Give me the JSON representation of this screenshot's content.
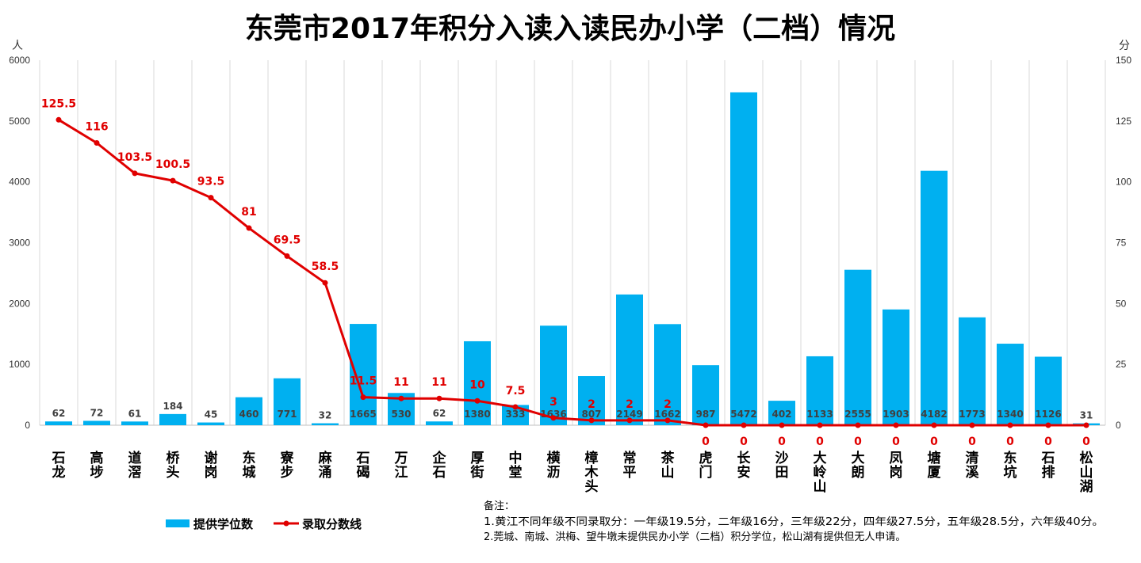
{
  "chart_data": {
    "type": "bar",
    "title": "东莞市2017年积分入读入读民办小学（二档）情况",
    "y_left_unit": "人",
    "y_right_unit": "分",
    "y_left_ticks": [
      "0",
      "1000",
      "2000",
      "3000",
      "4000",
      "5000",
      "6000"
    ],
    "y_right_ticks": [
      "0",
      "25",
      "50",
      "75",
      "100",
      "125",
      "150"
    ],
    "ylim_left": [
      0,
      6000
    ],
    "ylim_right": [
      0,
      150
    ],
    "grid": "vertical",
    "categories": [
      "石龙",
      "高埗",
      "道滘",
      "桥头",
      "谢岗",
      "东城",
      "寮步",
      "麻涌",
      "石碣",
      "万江",
      "企石",
      "厚街",
      "中堂",
      "横沥",
      "樟木头",
      "常平",
      "茶山",
      "虎门",
      "长安",
      "沙田",
      "大岭山",
      "大朗",
      "凤岗",
      "塘厦",
      "清溪",
      "东坑",
      "石排",
      "松山湖"
    ],
    "bar_value_labels": [
      "62",
      "72",
      "61",
      "184",
      "45",
      "460",
      "771",
      "32",
      "1665",
      "530",
      "62",
      "1380",
      "333",
      "1636",
      "807",
      "2149",
      "1662",
      "987",
      "5472",
      "402",
      "1133",
      "2555",
      "1903",
      "4182",
      "1773",
      "1340",
      "1126",
      "31"
    ],
    "line_value_labels": [
      "125.5",
      "116",
      "103.5",
      "100.5",
      "93.5",
      "81",
      "69.5",
      "58.5",
      "11.5",
      "11",
      "11",
      "10",
      "7.5",
      "3",
      "2",
      "2",
      "2",
      "0",
      "0",
      "0",
      "0",
      "0",
      "0",
      "0",
      "0",
      "0",
      "0",
      "0"
    ],
    "series": [
      {
        "name": "提供学位数",
        "type": "bar",
        "axis": "left",
        "color": "#00b0f0",
        "values": [
          62,
          72,
          61,
          184,
          45,
          460,
          771,
          32,
          1665,
          530,
          62,
          1380,
          333,
          1636,
          807,
          2149,
          1662,
          987,
          5472,
          402,
          1133,
          2555,
          1903,
          4182,
          1773,
          1340,
          1126,
          31
        ]
      },
      {
        "name": "录取分数线",
        "type": "line",
        "axis": "right",
        "color": "#e00000",
        "values": [
          125.5,
          116,
          103.5,
          100.5,
          93.5,
          81,
          69.5,
          58.5,
          11.5,
          11,
          11,
          10,
          7.5,
          3,
          2,
          2,
          2,
          0,
          0,
          0,
          0,
          0,
          0,
          0,
          0,
          0,
          0,
          0
        ]
      }
    ],
    "legend_position": "bottom-left",
    "notes": [
      "备注：",
      "1.黄江不同年级不同录取分：一年级19.5分，二年级16分，三年级22分，四年级27.5分，五年级28.5分，六年级40分。",
      "2.莞城、南城、洪梅、望牛墩未提供民办小学（二档）积分学位，松山湖有提供但无人申请。"
    ]
  }
}
